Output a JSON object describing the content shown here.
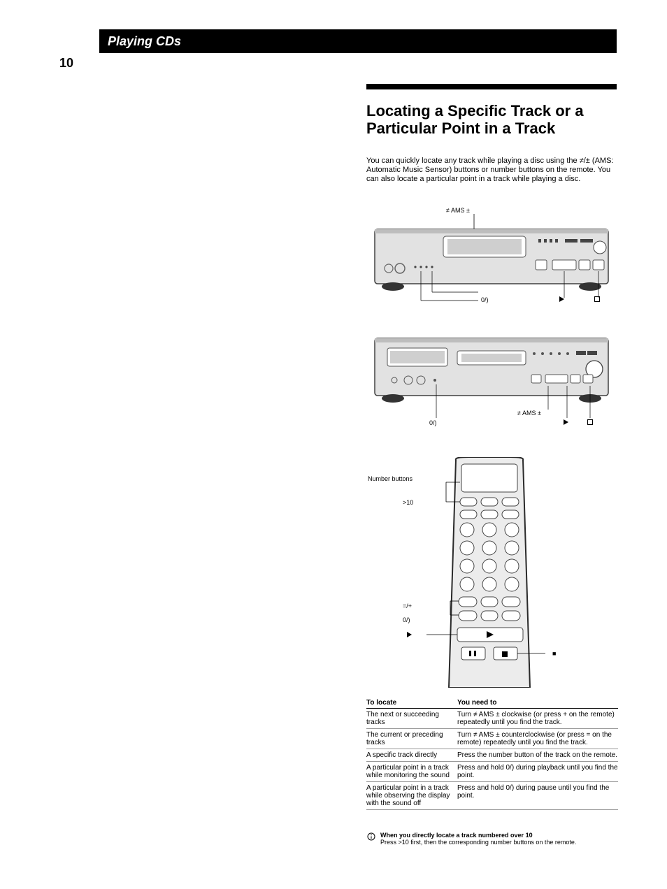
{
  "header": {
    "chapter_title": "Playing CDs",
    "page_number": "10"
  },
  "section": {
    "title_line1": "Locating a Specific Track or a",
    "title_line2": "Particular Point in a Track",
    "paren_note": "",
    "intro": "You can quickly locate any track while playing a disc using the ≠/± (AMS: Automatic Music Sensor) buttons or number buttons on the remote. You can also locate a particular point in a track while playing a disc."
  },
  "callouts": {
    "device1_top": "≠ AMS ±",
    "device1_bL": "0/)",
    "device1_bR_play": "·",
    "device1_bR_stop": "p",
    "device2_mid": "0/)",
    "device2_right": "≠ AMS ±",
    "device2_play": "·",
    "device2_stop": "p",
    "remote_num": "Number buttons",
    "remote_gt10": ">10",
    "remote_ams": "=/+",
    "remote_play": "·",
    "remote_rew": "0/)",
    "remote_stop": "p"
  },
  "table": {
    "header_left": "To locate",
    "header_right": "You need to",
    "rows": [
      {
        "l": "The next or succeeding tracks",
        "r": "Turn ≠ AMS ± clockwise (or press + on the remote) repeatedly until you find the track."
      },
      {
        "l": "The current or preceding tracks",
        "r": "Turn ≠ AMS ± counterclockwise (or press = on the remote) repeatedly until you find the track."
      },
      {
        "l": "A specific track directly",
        "r": "Press the number button of the track on the remote."
      },
      {
        "l": "A particular point in a track while monitoring the sound",
        "r": "Press and hold 0/) during playback until you find the point."
      },
      {
        "l": "A particular point in a track while observing the display with the sound off",
        "r": "Press and hold 0/) during pause until you find the point."
      }
    ]
  },
  "tip": {
    "label": "When you directly locate a track numbered over 10",
    "body": "Press >10 first, then the corresponding number buttons on the remote."
  },
  "colors": {
    "black": "#000000",
    "white": "#ffffff",
    "device_fill": "#e2e2e2",
    "device_stroke": "#2e2e2e"
  }
}
